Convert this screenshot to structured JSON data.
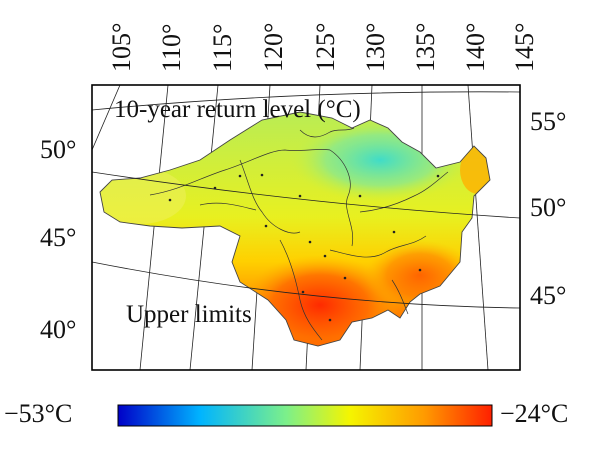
{
  "map": {
    "title": "10-year return level (°C)",
    "annotation": "Upper limits",
    "top_longitude_labels": [
      "105°",
      "110°",
      "115°",
      "120°",
      "125°",
      "130°",
      "135°",
      "140°",
      "145°"
    ],
    "left_latitude_labels": [
      "50°",
      "45°",
      "40°"
    ],
    "right_latitude_labels": [
      "55°",
      "50°",
      "45°"
    ]
  },
  "colorbar": {
    "min_label": "−53°C",
    "max_label": "−24°C",
    "min_value": -53,
    "max_value": -24,
    "unit": "°C",
    "colors": [
      "#0000c8",
      "#00b4ff",
      "#7cf08a",
      "#f5f500",
      "#ff9a00",
      "#ff2000"
    ]
  }
}
